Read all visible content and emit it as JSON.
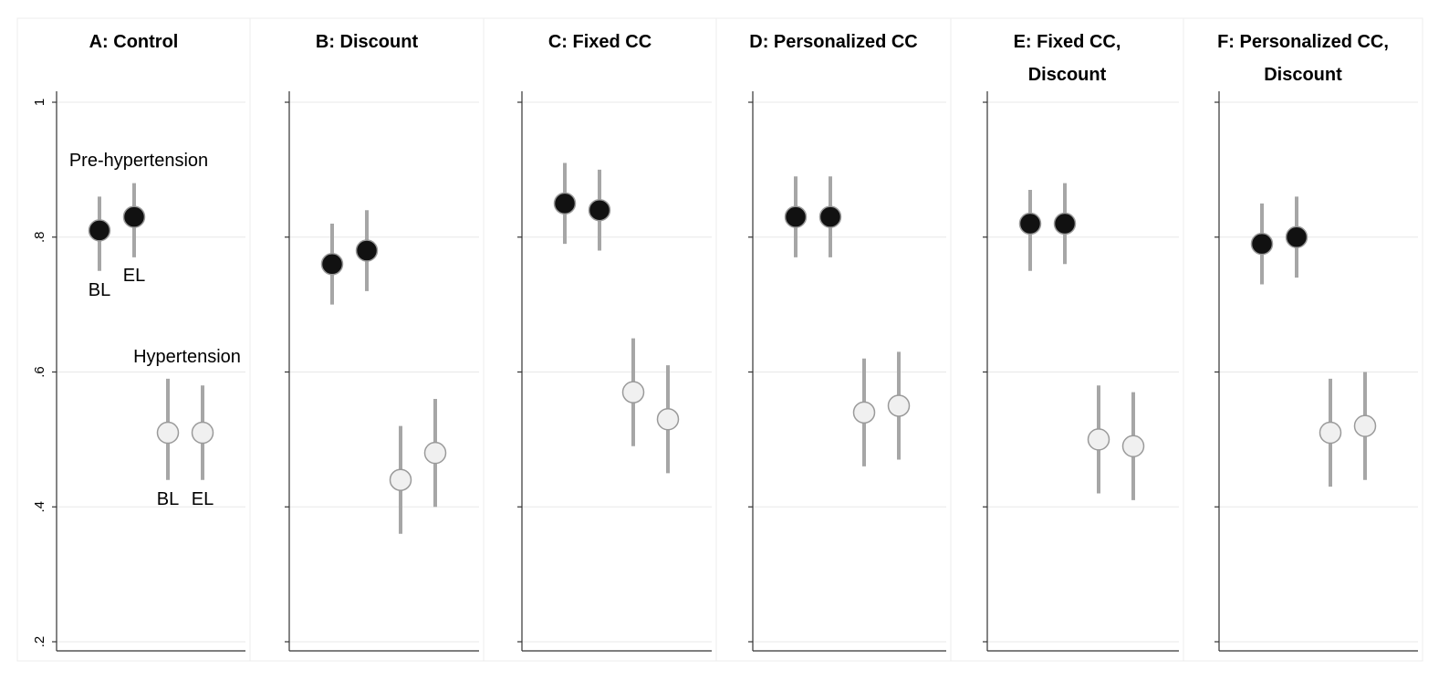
{
  "chart_data": {
    "type": "scatter",
    "ylim": [
      0.2,
      1.0
    ],
    "yticks": [
      {
        "value": 1.0,
        "label": "1"
      },
      {
        "value": 0.8,
        "label": ".8"
      },
      {
        "value": 0.6,
        "label": ".6"
      },
      {
        "value": 0.4,
        "label": ".4"
      },
      {
        "value": 0.2,
        "label": ".2"
      }
    ],
    "grid": true,
    "annotations": {
      "pre_hypertension": "Pre-hypertension",
      "hypertension": "Hypertension",
      "bl": "BL",
      "el": "EL"
    },
    "colors": {
      "pre_hypertension": "#111111",
      "hypertension": "#f0f0f0",
      "error_bar": "#a6a6a6"
    },
    "panels": [
      {
        "title_lines": [
          "A: Control"
        ],
        "pre_hypertension": [
          {
            "period": "BL",
            "mean": 0.81,
            "low": 0.75,
            "high": 0.86
          },
          {
            "period": "EL",
            "mean": 0.83,
            "low": 0.77,
            "high": 0.88
          }
        ],
        "hypertension": [
          {
            "period": "BL",
            "mean": 0.51,
            "low": 0.44,
            "high": 0.59
          },
          {
            "period": "EL",
            "mean": 0.51,
            "low": 0.44,
            "high": 0.58
          }
        ]
      },
      {
        "title_lines": [
          "B: Discount"
        ],
        "pre_hypertension": [
          {
            "period": "BL",
            "mean": 0.76,
            "low": 0.7,
            "high": 0.82
          },
          {
            "period": "EL",
            "mean": 0.78,
            "low": 0.72,
            "high": 0.84
          }
        ],
        "hypertension": [
          {
            "period": "BL",
            "mean": 0.44,
            "low": 0.36,
            "high": 0.52
          },
          {
            "period": "EL",
            "mean": 0.48,
            "low": 0.4,
            "high": 0.56
          }
        ]
      },
      {
        "title_lines": [
          "C: Fixed CC"
        ],
        "pre_hypertension": [
          {
            "period": "BL",
            "mean": 0.85,
            "low": 0.79,
            "high": 0.91
          },
          {
            "period": "EL",
            "mean": 0.84,
            "low": 0.78,
            "high": 0.9
          }
        ],
        "hypertension": [
          {
            "period": "BL",
            "mean": 0.57,
            "low": 0.49,
            "high": 0.65
          },
          {
            "period": "EL",
            "mean": 0.53,
            "low": 0.45,
            "high": 0.61
          }
        ]
      },
      {
        "title_lines": [
          "D: Personalized CC"
        ],
        "pre_hypertension": [
          {
            "period": "BL",
            "mean": 0.83,
            "low": 0.77,
            "high": 0.89
          },
          {
            "period": "EL",
            "mean": 0.83,
            "low": 0.77,
            "high": 0.89
          }
        ],
        "hypertension": [
          {
            "period": "BL",
            "mean": 0.54,
            "low": 0.46,
            "high": 0.62
          },
          {
            "period": "EL",
            "mean": 0.55,
            "low": 0.47,
            "high": 0.63
          }
        ]
      },
      {
        "title_lines": [
          "E: Fixed CC,",
          "Discount"
        ],
        "pre_hypertension": [
          {
            "period": "BL",
            "mean": 0.82,
            "low": 0.75,
            "high": 0.87
          },
          {
            "period": "EL",
            "mean": 0.82,
            "low": 0.76,
            "high": 0.88
          }
        ],
        "hypertension": [
          {
            "period": "BL",
            "mean": 0.5,
            "low": 0.42,
            "high": 0.58
          },
          {
            "period": "EL",
            "mean": 0.49,
            "low": 0.41,
            "high": 0.57
          }
        ]
      },
      {
        "title_lines": [
          "F: Personalized CC,",
          "Discount"
        ],
        "pre_hypertension": [
          {
            "period": "BL",
            "mean": 0.79,
            "low": 0.73,
            "high": 0.85
          },
          {
            "period": "EL",
            "mean": 0.8,
            "low": 0.74,
            "high": 0.86
          }
        ],
        "hypertension": [
          {
            "period": "BL",
            "mean": 0.51,
            "low": 0.43,
            "high": 0.59
          },
          {
            "period": "EL",
            "mean": 0.52,
            "low": 0.44,
            "high": 0.6
          }
        ]
      }
    ]
  }
}
